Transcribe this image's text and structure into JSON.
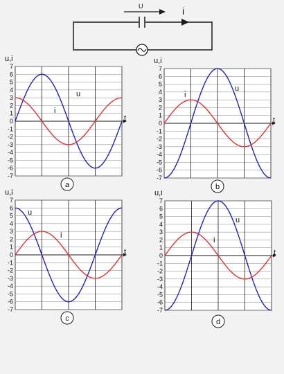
{
  "circuit": {
    "voltage_label": "U",
    "current_label": "i",
    "source_symbol": "~"
  },
  "axes": {
    "y_label": "u,i",
    "x_label": "t",
    "y_ticks": [
      "7",
      "6",
      "5",
      "4",
      "3",
      "2",
      "1",
      "0",
      "-1",
      "-2",
      "-3",
      "-4",
      "-5",
      "-6",
      "-7"
    ]
  },
  "colors": {
    "voltage": "#2222bb",
    "current": "#dd3333",
    "grid": "#1a1a1a"
  },
  "chart_data": [
    {
      "type": "line",
      "caption": "a",
      "ylim": [
        -7,
        7
      ],
      "series": [
        {
          "name": "u",
          "amplitude": 6,
          "phase_deg": 0,
          "label": "u"
        },
        {
          "name": "i",
          "amplitude": 3,
          "phase_deg": 90,
          "label": "i"
        }
      ]
    },
    {
      "type": "line",
      "caption": "b",
      "ylim": [
        -7,
        7
      ],
      "series": [
        {
          "name": "u",
          "amplitude": 7,
          "phase_deg": -90,
          "label": "u"
        },
        {
          "name": "i",
          "amplitude": 3,
          "phase_deg": 0,
          "label": "i"
        }
      ]
    },
    {
      "type": "line",
      "caption": "c",
      "ylim": [
        -7,
        7
      ],
      "series": [
        {
          "name": "u",
          "amplitude": 6,
          "phase_deg": 90,
          "label": "u"
        },
        {
          "name": "i",
          "amplitude": 3,
          "phase_deg": 0,
          "label": "i"
        }
      ]
    },
    {
      "type": "line",
      "caption": "d",
      "ylim": [
        -7,
        7
      ],
      "series": [
        {
          "name": "u",
          "amplitude": 7,
          "phase_deg": -90,
          "label": "u"
        },
        {
          "name": "i",
          "amplitude": 3,
          "phase_deg": 0,
          "label": "i"
        }
      ]
    }
  ]
}
